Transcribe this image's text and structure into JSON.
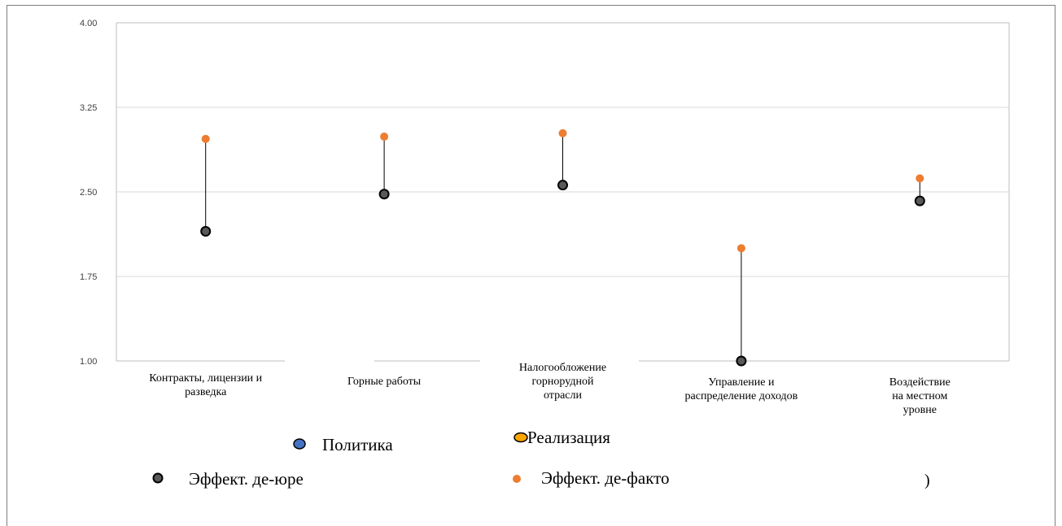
{
  "chart_data": {
    "type": "scatter",
    "title": "",
    "xlabel": "",
    "ylabel": "",
    "ylim": [
      1.0,
      4.0
    ],
    "yticks": [
      "1.00",
      "1.75",
      "2.50",
      "3.25",
      "4.00"
    ],
    "grid": true,
    "categories": [
      [
        "Контракты, лицензии и",
        "разведка"
      ],
      [
        "Горные работы"
      ],
      [
        "Налогообложение",
        "горнорудной",
        "отрасли"
      ],
      [
        "Управление и",
        "распределение доходов"
      ],
      [
        "Воздействие",
        "на местном",
        "уровне"
      ]
    ],
    "series": [
      {
        "name": "Эффект. де-юре",
        "color": "#595959",
        "values": [
          2.15,
          2.48,
          2.56,
          1.0,
          2.42
        ]
      },
      {
        "name": "Эффект. де-факто",
        "color": "#ED7D31",
        "values": [
          2.97,
          2.99,
          3.02,
          2.0,
          2.62
        ]
      }
    ],
    "legend": [
      {
        "label": "Политика",
        "color": "#4472C4"
      },
      {
        "label": "Реализация",
        "color": "#FFA500"
      },
      {
        "label": "Эффект. де-юре",
        "color": "#595959"
      },
      {
        "label": "Эффект. де-факто",
        "color": "#ED7D31"
      }
    ],
    "legend_position": "bottom",
    "stray_glyph": ")"
  }
}
